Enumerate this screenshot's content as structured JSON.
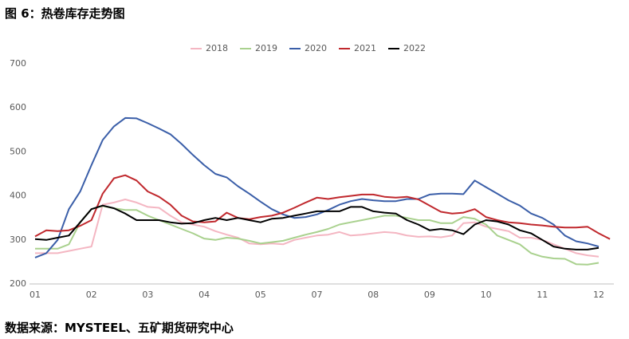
{
  "chart_data": {
    "type": "line",
    "title": "图 6：热卷库存走势图",
    "source": "数据来源：MYSTEEL、五矿期货研究中心",
    "categories": [
      "01",
      null,
      null,
      null,
      null,
      "02",
      null,
      null,
      null,
      null,
      "03",
      null,
      null,
      null,
      null,
      "04",
      null,
      null,
      null,
      null,
      "05",
      null,
      null,
      null,
      null,
      "07",
      null,
      null,
      null,
      null,
      "08",
      null,
      null,
      null,
      null,
      "09",
      null,
      null,
      null,
      null,
      "10",
      null,
      null,
      null,
      null,
      "11",
      null,
      null,
      null,
      null,
      "12",
      null
    ],
    "series": [
      {
        "name": "2018",
        "color": "#f4b6c2",
        "values": [
          270,
          270,
          270,
          275,
          280,
          285,
          380,
          385,
          392,
          385,
          375,
          373,
          355,
          340,
          335,
          330,
          320,
          312,
          305,
          292,
          290,
          292,
          290,
          300,
          305,
          310,
          312,
          318,
          310,
          312,
          315,
          318,
          316,
          310,
          307,
          308,
          306,
          310,
          338,
          340,
          330,
          325,
          320,
          305,
          305,
          300,
          290,
          280,
          270,
          265,
          262,
          null
        ]
      },
      {
        "name": "2019",
        "color": "#a9d18e",
        "values": [
          280,
          280,
          280,
          290,
          340,
          370,
          377,
          372,
          368,
          368,
          355,
          345,
          335,
          325,
          315,
          303,
          300,
          305,
          303,
          298,
          292,
          295,
          298,
          305,
          312,
          318,
          325,
          335,
          340,
          345,
          350,
          355,
          355,
          350,
          345,
          345,
          338,
          338,
          352,
          348,
          335,
          310,
          300,
          290,
          270,
          262,
          258,
          257,
          245,
          244,
          248,
          null
        ]
      },
      {
        "name": "2020",
        "color": "#3a5ea8",
        "values": [
          260,
          270,
          300,
          370,
          410,
          470,
          527,
          558,
          577,
          576,
          565,
          553,
          540,
          518,
          493,
          470,
          450,
          442,
          422,
          405,
          387,
          370,
          358,
          350,
          352,
          358,
          368,
          380,
          388,
          393,
          390,
          388,
          388,
          393,
          393,
          403,
          405,
          405,
          404,
          435,
          420,
          405,
          390,
          378,
          360,
          350,
          335,
          310,
          297,
          292,
          285,
          null
        ]
      },
      {
        "name": "2021",
        "color": "#c0282d",
        "values": [
          308,
          322,
          320,
          322,
          332,
          345,
          405,
          440,
          447,
          435,
          410,
          398,
          380,
          355,
          342,
          340,
          342,
          362,
          350,
          347,
          352,
          355,
          362,
          373,
          385,
          396,
          393,
          397,
          400,
          403,
          403,
          398,
          396,
          398,
          392,
          378,
          364,
          360,
          362,
          370,
          352,
          345,
          340,
          338,
          335,
          333,
          330,
          328,
          328,
          330,
          315,
          302
        ]
      },
      {
        "name": "2022",
        "color": "#000000",
        "values": [
          302,
          300,
          305,
          310,
          340,
          370,
          378,
          372,
          360,
          345,
          345,
          345,
          340,
          337,
          338,
          345,
          350,
          345,
          350,
          345,
          340,
          348,
          350,
          355,
          360,
          365,
          365,
          365,
          375,
          375,
          365,
          362,
          360,
          345,
          335,
          322,
          325,
          322,
          313,
          335,
          345,
          342,
          335,
          322,
          315,
          300,
          285,
          280,
          278,
          278,
          282,
          null
        ]
      }
    ],
    "ylim": [
      200,
      700
    ],
    "yticks": [
      200,
      300,
      400,
      500,
      600,
      700
    ],
    "grid": false,
    "legend": "top"
  }
}
